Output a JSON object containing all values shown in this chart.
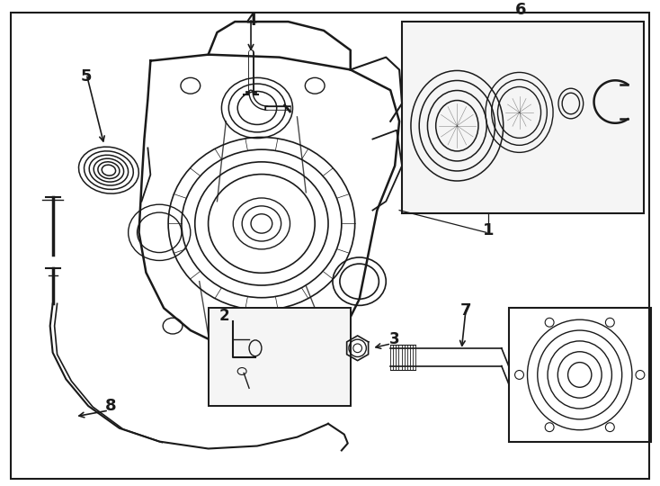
{
  "bg_color": "#ffffff",
  "line_color": "#1a1a1a",
  "label_fontsize": 12,
  "label_fontweight": "bold"
}
